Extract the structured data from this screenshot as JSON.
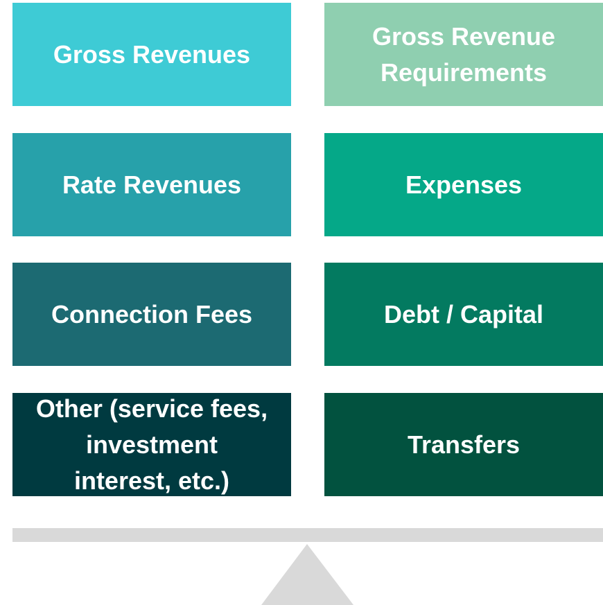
{
  "left": [
    {
      "lines": [
        "Gross Revenues"
      ]
    },
    {
      "lines": [
        "Rate Revenues"
      ]
    },
    {
      "lines": [
        "Connection Fees"
      ]
    },
    {
      "lines": [
        "Other (service fees,",
        "investment",
        "interest,  etc.)"
      ]
    }
  ],
  "right": [
    {
      "lines": [
        "Gross Revenue",
        "Requirements"
      ]
    },
    {
      "lines": [
        "Expenses"
      ]
    },
    {
      "lines": [
        "Debt / Capital"
      ]
    },
    {
      "lines": [
        "Transfers"
      ]
    }
  ]
}
